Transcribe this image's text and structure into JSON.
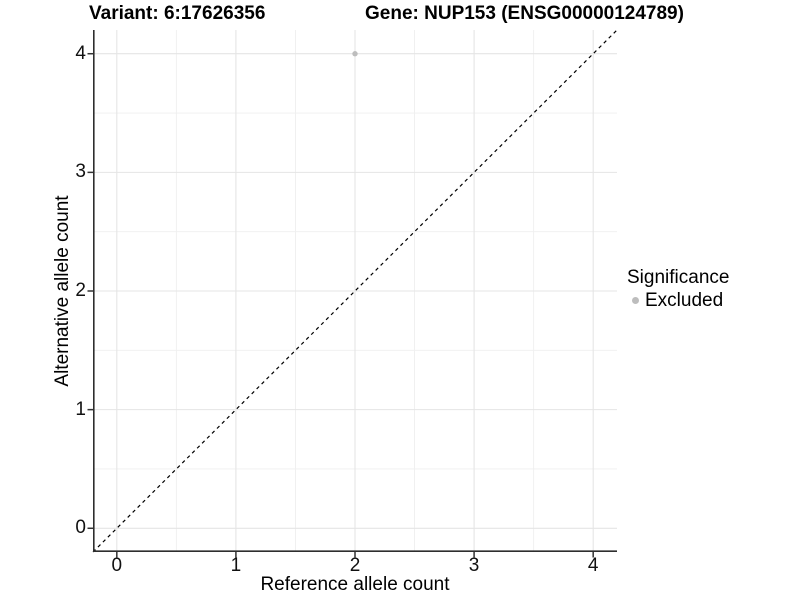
{
  "titles": {
    "variant": "Variant: 6:17626356",
    "gene": "Gene: NUP153 (ENSG00000124789)"
  },
  "axes": {
    "x": {
      "label": "Reference allele count",
      "tick_labels": [
        "0",
        "1",
        "2",
        "3",
        "4"
      ]
    },
    "y": {
      "label": "Alternative allele count",
      "tick_labels": [
        "0",
        "1",
        "2",
        "3",
        "4"
      ]
    }
  },
  "legend": {
    "title": "Significance",
    "items": [
      {
        "label": "Excluded",
        "color": "#bdbdbd",
        "marker": "circle-icon"
      }
    ]
  },
  "colors": {
    "background": "#ffffff",
    "grid_major": "#e5e5e5",
    "grid_minor": "#efefef",
    "axis_line": "#2e2e2e",
    "tick_mark": "#333333",
    "text": "#000000",
    "point": "#bdbdbd",
    "identity_line": "#000000"
  },
  "chart_data": {
    "type": "scatter",
    "title": "Variant: 6:17626356    Gene: NUP153 (ENSG00000124789)",
    "xlabel": "Reference allele count",
    "ylabel": "Alternative allele count",
    "xlim": [
      -0.2,
      4.2
    ],
    "ylim": [
      -0.2,
      4.2
    ],
    "x_ticks": [
      0,
      1,
      2,
      3,
      4
    ],
    "y_ticks": [
      0,
      1,
      2,
      3,
      4
    ],
    "grid": "major+minor",
    "legend_position": "right",
    "series": [
      {
        "name": "Excluded",
        "color": "#bdbdbd",
        "points": [
          {
            "x": 2,
            "y": 4
          }
        ]
      }
    ],
    "reference_line": {
      "type": "abline",
      "slope": 1,
      "intercept": 0,
      "style": "dashed",
      "color": "#000000"
    }
  }
}
